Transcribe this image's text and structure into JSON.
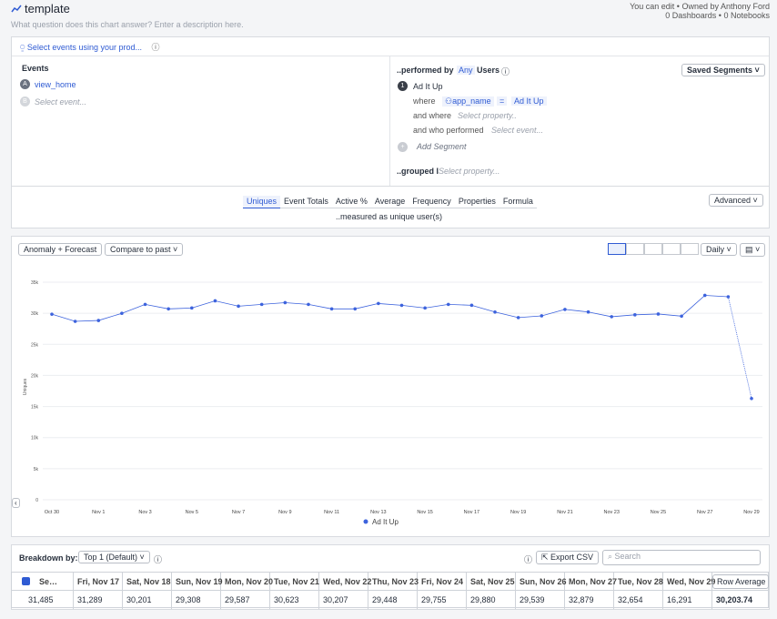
{
  "header": {
    "title": "template",
    "description": "What question does this chart answer? Enter a description here.",
    "permission": "You can edit • Owned by Anthony Ford",
    "counts": "0 Dashboards • 0 Notebooks"
  },
  "query": {
    "source": "Select events using your prod...",
    "events_label": "Events",
    "events": [
      {
        "letter": "A",
        "name": "view_home"
      },
      {
        "letter": "B",
        "name": "Select event..."
      }
    ],
    "performed_by": "..performed by",
    "any": "Any",
    "users": "Users",
    "saved_segments": "Saved Segments",
    "segment": {
      "number": "1",
      "name": "Ad It Up",
      "where": "where",
      "property": "app_name",
      "operator": "=",
      "value": "Ad It Up",
      "and_where": "and where",
      "select_property": "Select property..",
      "and_who": "and who performed",
      "select_event": "Select event..."
    },
    "add_segment": "Add Segment",
    "grouped_by": "..grouped l",
    "grouped_placeholder": "Select property...",
    "measures": [
      "Uniques",
      "Event Totals",
      "Active %",
      "Average",
      "Frequency",
      "Properties",
      "Formula"
    ],
    "measured_as": "..measured as unique user(s)",
    "advanced": "Advanced"
  },
  "toolbar": {
    "anomaly": "Anomaly + Forecast",
    "compare": "Compare to past",
    "interval": "Daily"
  },
  "chart_data": {
    "type": "line",
    "y_label": "Uniques",
    "categories": [
      "Oct 30",
      null,
      "Nov 1",
      null,
      "Nov 3",
      null,
      "Nov 5",
      null,
      "Nov 7",
      null,
      "Nov 9",
      null,
      "Nov 11",
      null,
      "Nov 13",
      null,
      "Nov 15",
      null,
      "Nov 17",
      null,
      "Nov 19",
      null,
      "Nov 21",
      null,
      "Nov 23",
      null,
      "Nov 25",
      null,
      "Nov 27",
      null,
      "Nov 29"
    ],
    "series": [
      {
        "name": "Ad It Up",
        "color": "#3d63dd",
        "values": [
          29850,
          28700,
          28840,
          29990,
          31430,
          30710,
          30850,
          32000,
          31140,
          31430,
          31710,
          31430,
          30710,
          30710,
          31570,
          31280,
          30850,
          31430,
          31289,
          30201,
          29308,
          29587,
          30623,
          30207,
          29448,
          29755,
          29880,
          29539,
          32879,
          32654,
          16291
        ]
      }
    ],
    "ylim": [
      0,
      35000
    ],
    "yticks": [
      0,
      {
        "value": 5000,
        "label": "5k"
      },
      {
        "value": 10000,
        "label": "10k"
      },
      {
        "value": 15000,
        "label": "15k"
      },
      {
        "value": 20000,
        "label": "20k"
      },
      {
        "value": 25000,
        "label": "25k"
      },
      {
        "value": 30000,
        "label": "30k"
      },
      {
        "value": 35000,
        "label": "35k"
      }
    ],
    "grid": true
  },
  "breakdown": {
    "label": "Breakdown by:",
    "top": "Top 1 (Default)",
    "export": "Export CSV",
    "search": "Search"
  },
  "table": {
    "headers": [
      "Se…",
      "Fri, Nov 17",
      "Sat, Nov 18",
      "Sun, Nov 19",
      "Mon, Nov 20",
      "Tue, Nov 21",
      "Wed, Nov 22",
      "Thu, Nov 23",
      "Fri, Nov 24",
      "Sat, Nov 25",
      "Sun, Nov 26",
      "Mon, Nov 27",
      "Tue, Nov 28",
      "Wed, Nov 29",
      "Row Average"
    ],
    "rows": [
      [
        "31,485",
        "31,289",
        "30,201",
        "29,308",
        "29,587",
        "30,623",
        "30,207",
        "29,448",
        "29,755",
        "29,880",
        "29,539",
        "32,879",
        "32,654",
        "16,291",
        "30,203.74"
      ]
    ]
  }
}
